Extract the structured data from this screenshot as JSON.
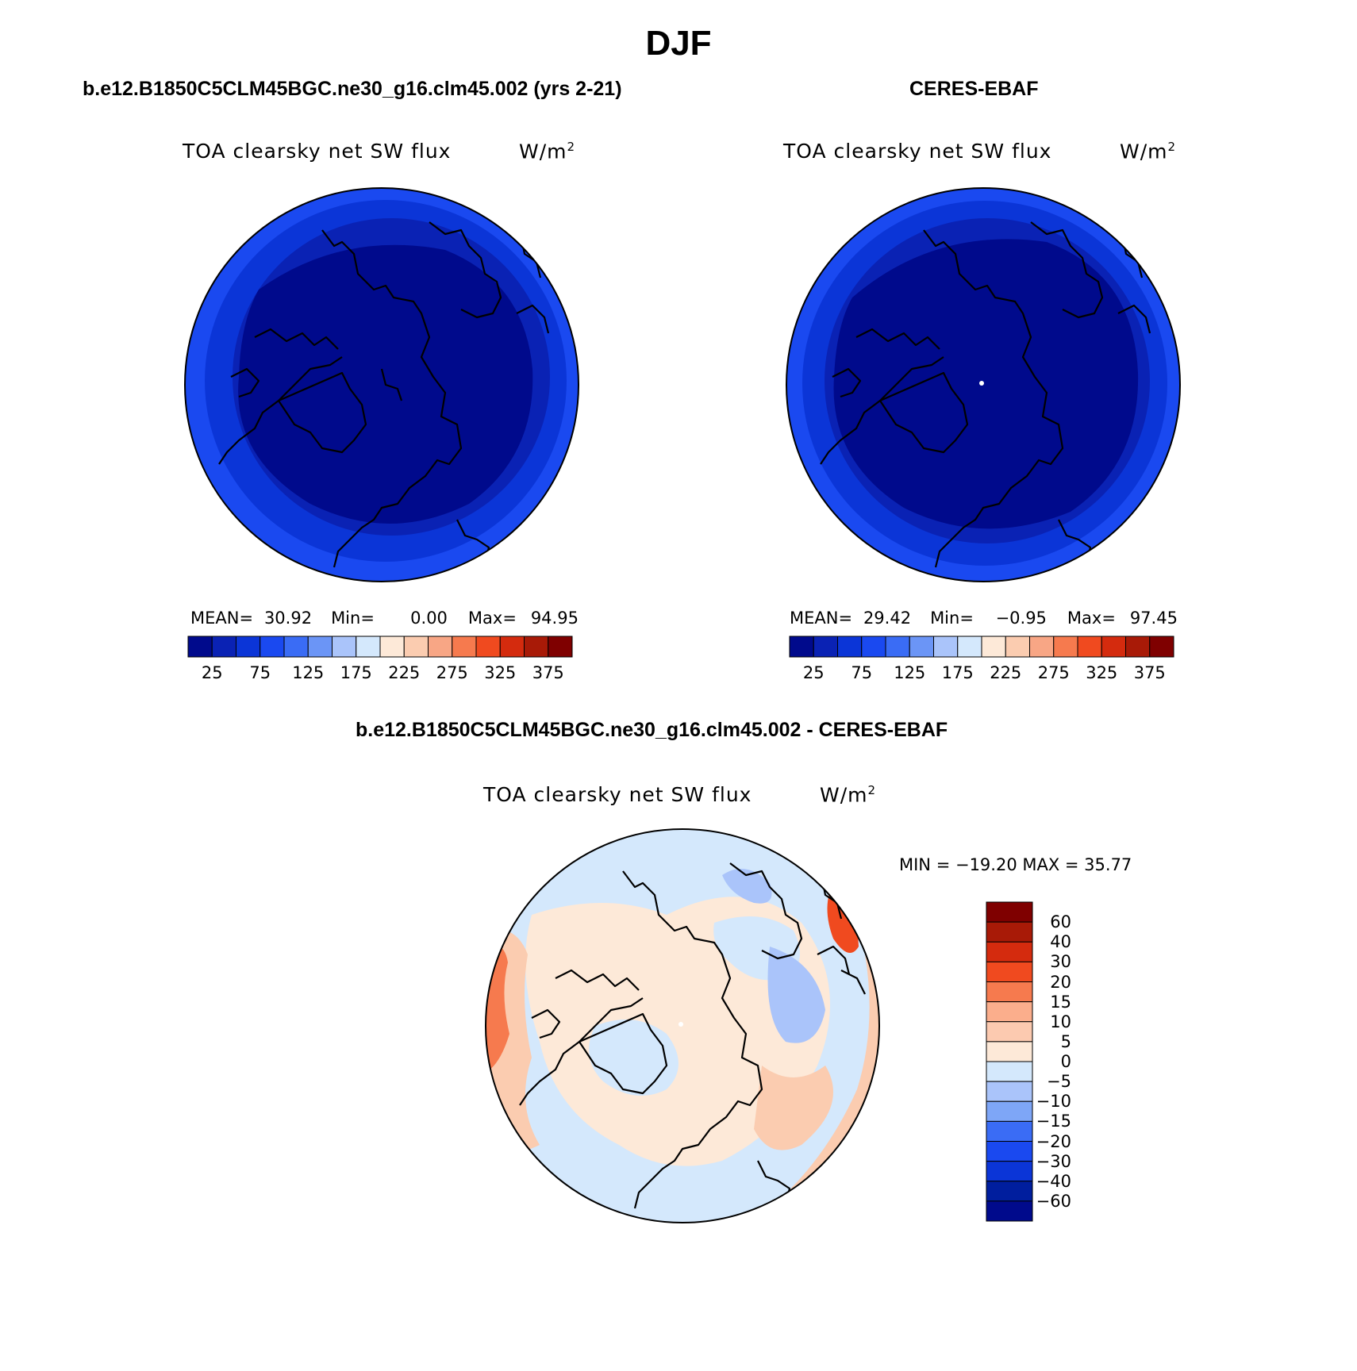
{
  "title": "DJF",
  "panels": {
    "model": {
      "header": "b.e12.B1850C5CLM45BGC.ne30_g16.clm45.002 (yrs 2-21)",
      "variable": "TOA clearsky net SW flux",
      "units": "W/m",
      "units_sup": "2",
      "stats": {
        "mean_label": "MEAN=",
        "mean": "30.92",
        "min_label": "Min=",
        "min": "0.00",
        "max_label": "Max=",
        "max": "94.95"
      }
    },
    "obs": {
      "header": "CERES-EBAF",
      "variable": "TOA clearsky net SW flux",
      "units": "W/m",
      "units_sup": "2",
      "stats": {
        "mean_label": "MEAN=",
        "mean": "29.42",
        "min_label": "Min=",
        "min": "−0.95",
        "max_label": "Max=",
        "max": "97.45"
      }
    },
    "diff": {
      "header": "b.e12.B1850C5CLM45BGC.ne30_g16.clm45.002 - CERES-EBAF",
      "variable": "TOA clearsky net SW flux",
      "units": "W/m",
      "units_sup": "2",
      "stats": "MIN = −19.20 MAX =   35.77"
    }
  },
  "abs_colorbar": {
    "colors": [
      "#000a8c",
      "#0a22b4",
      "#0b35d7",
      "#1a49f0",
      "#3a6cf5",
      "#6b95f6",
      "#aac4fa",
      "#d4e8fc",
      "#fde9d8",
      "#fbccb0",
      "#f8a685",
      "#f67a4e",
      "#f04a1f",
      "#d42b0e",
      "#a81a07",
      "#7f0000"
    ],
    "tick_labels": [
      "25",
      "75",
      "125",
      "175",
      "225",
      "275",
      "325",
      "375"
    ]
  },
  "diff_colorbar": {
    "colors_top_to_bottom": [
      "#7f0000",
      "#a81a07",
      "#d42b0e",
      "#f04a1f",
      "#f67a4e",
      "#fbae8c",
      "#fccab0",
      "#fde9d8",
      "#d4e8fc",
      "#aac4fa",
      "#7ea6f7",
      "#3a6cf5",
      "#1a49f0",
      "#0b35d7",
      "#001e9e",
      "#000a8c"
    ],
    "tick_labels": [
      "60",
      "40",
      "30",
      "20",
      "15",
      "10",
      "5",
      "0",
      "−5",
      "−10",
      "−15",
      "−20",
      "−30",
      "−40",
      "−60"
    ]
  },
  "map_colors": {
    "abs_inner": "#000a8c",
    "abs_mid": "#0a22b4",
    "abs_outer": "#0b35d7",
    "abs_rim": "#1a49f0",
    "diff_base": "#fde9d8",
    "diff_neg": "#d4e8fc",
    "diff_neg2": "#aac4fa",
    "diff_pos": "#fbccb0",
    "diff_pos2": "#f67a4e",
    "diff_pos3": "#f04a1f"
  }
}
